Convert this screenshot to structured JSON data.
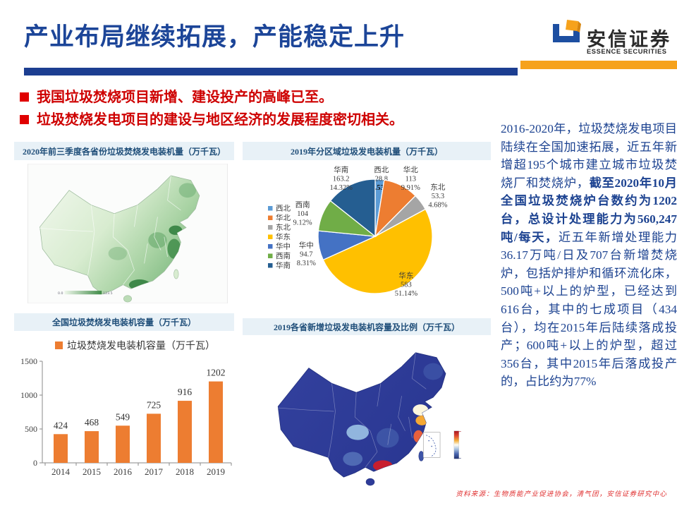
{
  "header": {
    "title": "产业布局继续拓展，产能稳定上升",
    "title_color": "#1C4598",
    "bar_blue": "#1C3E91",
    "bar_orange": "#F6A21C",
    "logo": {
      "name_cn": "安信证券",
      "name_en": "ESSENCE SECURITIES",
      "blue": "#1D4FA1",
      "orange": "#F6A21C"
    }
  },
  "bullets": {
    "color": "#CE0000",
    "items": [
      "我国垃圾焚烧项目新增、建设投产的高峰已至。",
      "垃圾焚烧发电项目的建设与地区经济的发展程度密切相关。"
    ]
  },
  "panels": {
    "map_green": {
      "title": "2020年前三季度各省份垃圾焚烧发电装机量（万千瓦）",
      "legend_min": "0.0",
      "legend_max": "123.5"
    },
    "pie": {
      "title": "2019年分区域垃圾发电装机量（万千瓦）"
    },
    "bar": {
      "title": "全国垃圾焚烧发电装机容量（万千瓦）"
    },
    "map_blue": {
      "title": "2019各省新增垃圾发电装机容量及比例（万千瓦）"
    }
  },
  "chart_data": [
    {
      "type": "pie",
      "title": "2019年分区域垃圾发电装机量（万千瓦）",
      "legend_position": "left",
      "slices": [
        {
          "name": "西北",
          "value": 28.8,
          "pct": "2.53%",
          "color": "#5B9BD5",
          "emphasis": true
        },
        {
          "name": "华北",
          "value": 113,
          "pct": "9.91%",
          "color": "#ED7D31"
        },
        {
          "name": "东北",
          "value": 53.3,
          "pct": "4.68%",
          "color": "#A5A5A5"
        },
        {
          "name": "华东",
          "value": 583,
          "pct": "51.14%",
          "color": "#FFC000"
        },
        {
          "name": "华中",
          "value": 94.7,
          "pct": "8.31%",
          "color": "#4472C4"
        },
        {
          "name": "西南",
          "value": 104,
          "pct": "9.12%",
          "color": "#70AD47"
        },
        {
          "name": "华南",
          "value": 163.2,
          "pct": "14.32%",
          "color": "#255E91"
        }
      ]
    },
    {
      "type": "bar",
      "title": "全国垃圾焚烧发电装机容量（万千瓦）",
      "series_label": "垃圾焚烧发电装机容量（万千瓦）",
      "categories": [
        "2014",
        "2015",
        "2016",
        "2017",
        "2018",
        "2019"
      ],
      "values": [
        424,
        468,
        549,
        725,
        916,
        1202
      ],
      "ylim": [
        0,
        1500
      ],
      "yticks": [
        0,
        500,
        1000,
        1500
      ],
      "bar_color": "#ED7D31"
    }
  ],
  "sidebar_text": {
    "color": "#1D4391",
    "segments": [
      {
        "text": "2016-2020年，垃圾焚烧发电项目陆续在全国加速拓展，近五年新增超195个城市建立城市垃圾焚烧厂和焚烧炉，",
        "bold": false
      },
      {
        "text": "截至2020年10月全国垃圾焚烧炉台数约为1202台，总设计处理能力为560,247吨/每天，",
        "bold": true
      },
      {
        "text": "近五年新增处理能力36.17万吨/日及707台新增焚烧炉，包括炉排炉和循环流化床，500吨+以上的炉型，已经达到616台，其中的七成项目（434台），均在2015年后陆续落成投产；600吨+以上的炉型，超过356台，其中2015年后落成投产的，占比约为77%",
        "bold": false
      }
    ]
  },
  "footer": {
    "source": "资料来源：生物质能产业促进协会，清气团，安信证券研究中心",
    "color": "#E03030"
  }
}
